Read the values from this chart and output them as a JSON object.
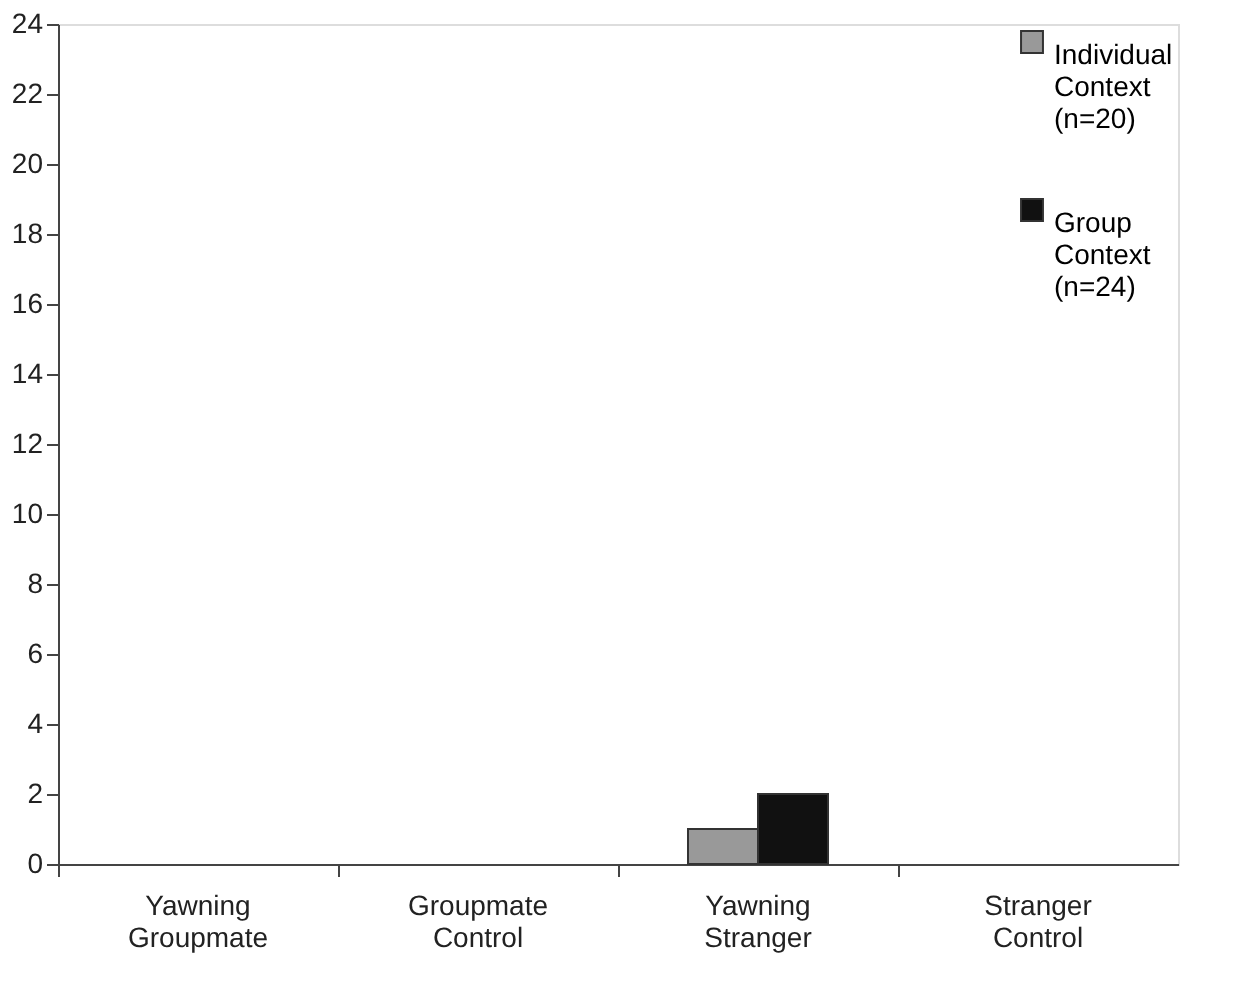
{
  "chart_data": {
    "type": "bar",
    "categories": [
      "Yawning Groupmate",
      "Groupmate Control",
      "Yawning Stranger",
      "Stranger Control"
    ],
    "series": [
      {
        "name": "Individual Context (n=20)",
        "color": "#999999",
        "values": [
          0,
          0,
          1,
          0
        ]
      },
      {
        "name": "Group Context (n=24)",
        "color": "#111111",
        "values": [
          0,
          0,
          2,
          0
        ]
      }
    ],
    "ylim": [
      0,
      24
    ],
    "yticks": [
      0,
      2,
      4,
      6,
      8,
      10,
      12,
      14,
      16,
      18,
      20,
      22,
      24
    ],
    "grid": false,
    "legend": "top right"
  }
}
